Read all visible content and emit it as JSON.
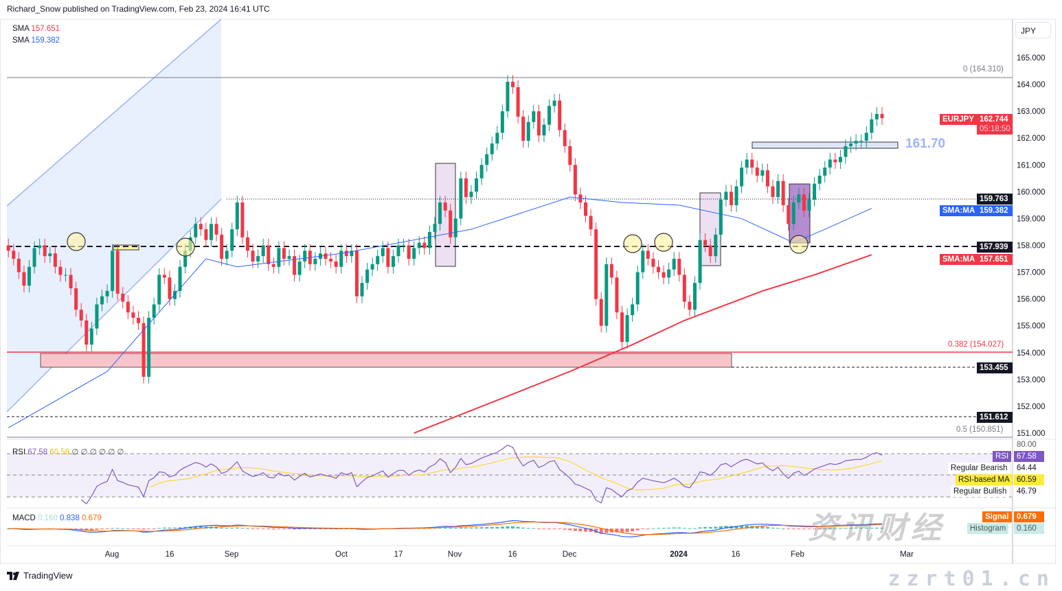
{
  "header": {
    "publisher": "Richard_Snow published on TradingView.com, Feb 23, 2024 16:41 UTC"
  },
  "legend": {
    "sma1_label": "SMA",
    "sma1_value": "157.651",
    "sma2_label": "SMA",
    "sma2_value": "159.382"
  },
  "currency_button": "JPY",
  "footer": {
    "brand": "TradingView"
  },
  "watermark": {
    "text": "zzrt01.cn",
    "glyphs": "资讯财经"
  },
  "colors": {
    "up": "#089981",
    "down": "#f23645",
    "sma50": "#2962ff",
    "sma200": "#f23645",
    "rsi": "#7e57c2",
    "rsi_ma": "#fdd835",
    "macd": "#2962ff",
    "signal": "#ff6d00"
  },
  "chart_data": {
    "type": "candlestick",
    "symbol": "EURJPY",
    "last_price": "162.744",
    "countdown": "05:18:50",
    "ylim": [
      150.6,
      166
    ],
    "y_ticks": [
      "165.000",
      "164.000",
      "163.000",
      "162.000",
      "161.000",
      "160.000",
      "159.000",
      "158.000",
      "157.000",
      "156.000",
      "155.000",
      "154.000",
      "153.000",
      "152.000",
      "151.000"
    ],
    "x_ticks": [
      "Aug",
      "16",
      "Sep",
      "Oct",
      "17",
      "Nov",
      "16",
      "Dec",
      "2024",
      "16",
      "Feb",
      "Mar"
    ],
    "weeks": [
      {
        "week": "2023-07-03",
        "closes": [
          157.8,
          157.5,
          157.0,
          156.5,
          157.2
        ]
      },
      {
        "week": "2023-07-10",
        "closes": [
          157.9,
          158.0,
          157.6,
          157.7,
          157.2
        ]
      },
      {
        "week": "2023-07-17",
        "closes": [
          156.9,
          156.9,
          156.4,
          155.6,
          155.2
        ]
      },
      {
        "week": "2023-07-24",
        "closes": [
          154.3,
          154.9,
          155.8,
          156.1,
          156.3
        ]
      },
      {
        "week": "2023-07-31",
        "closes": [
          157.8,
          156.2,
          155.9,
          155.5,
          155.3
        ]
      },
      {
        "week": "2023-08-07",
        "closes": [
          155.1,
          153.1,
          155.3,
          155.8,
          156.9
        ]
      },
      {
        "week": "2023-08-14",
        "closes": [
          156.8,
          156.0,
          156.3,
          157.2,
          157.8
        ]
      },
      {
        "week": "2023-08-21",
        "closes": [
          158.3,
          158.8,
          158.6,
          158.2,
          158.8
        ]
      },
      {
        "week": "2023-08-28",
        "closes": [
          158.4,
          157.5,
          157.8,
          158.6,
          159.6
        ]
      },
      {
        "week": "2023-09-04",
        "closes": [
          158.3,
          157.8,
          157.4,
          157.6,
          158.0
        ]
      },
      {
        "week": "2023-09-11",
        "closes": [
          157.3,
          157.2,
          157.9,
          157.5,
          157.6
        ]
      },
      {
        "week": "2023-09-18",
        "closes": [
          156.9,
          157.4,
          157.8,
          157.3,
          157.5
        ]
      },
      {
        "week": "2023-09-25",
        "closes": [
          157.7,
          157.5,
          157.4,
          157.2,
          157.8
        ]
      },
      {
        "week": "2023-10-02",
        "closes": [
          157.6,
          157.8,
          156.1,
          156.6,
          157.1
        ]
      },
      {
        "week": "2023-10-09",
        "closes": [
          157.3,
          157.6,
          157.9,
          157.2,
          157.6
        ]
      },
      {
        "week": "2023-10-16",
        "closes": [
          158.0,
          158.0,
          157.5,
          157.9,
          158.1
        ]
      },
      {
        "week": "2023-10-23",
        "closes": [
          157.9,
          158.5,
          158.8,
          159.6,
          159.3
        ]
      },
      {
        "week": "2023-10-30",
        "closes": [
          158.3,
          159.0,
          160.5,
          159.8,
          160.0
        ]
      },
      {
        "week": "2023-11-06",
        "closes": [
          160.5,
          161.0,
          161.4,
          161.8,
          162.2
        ]
      },
      {
        "week": "2023-11-13",
        "closes": [
          163.0,
          164.1,
          163.9,
          162.8,
          161.9
        ]
      },
      {
        "week": "2023-11-20",
        "closes": [
          162.6,
          163.0,
          162.1,
          162.5,
          163.2
        ]
      },
      {
        "week": "2023-11-27",
        "closes": [
          163.4,
          162.3,
          161.7,
          161.0,
          159.9
        ]
      },
      {
        "week": "2023-12-04",
        "closes": [
          159.6,
          159.1,
          158.6,
          156.0,
          155.0
        ]
      },
      {
        "week": "2023-12-11",
        "closes": [
          157.3,
          156.8,
          155.5,
          154.4,
          155.4
        ]
      },
      {
        "week": "2023-12-18",
        "closes": [
          155.8,
          157.0,
          157.8,
          157.5,
          157.2
        ]
      },
      {
        "week": "2023-12-25",
        "closes": [
          157.0,
          156.8,
          157.1,
          157.5,
          156.9
        ]
      },
      {
        "week": "2024-01-01",
        "closes": [
          155.9,
          155.6,
          156.6,
          158.2
        ]
      },
      {
        "week": "2024-01-08",
        "closes": [
          158.0,
          157.6,
          158.4,
          159.7,
          160.0
        ]
      },
      {
        "week": "2024-01-15",
        "closes": [
          159.5,
          160.2,
          160.9,
          161.2,
          160.9
        ]
      },
      {
        "week": "2024-01-22",
        "closes": [
          160.6,
          160.8,
          160.2,
          159.8,
          160.4
        ]
      },
      {
        "week": "2024-01-29",
        "closes": [
          159.5,
          158.8,
          159.6,
          159.9,
          159.3
        ]
      },
      {
        "week": "2024-02-05",
        "closes": [
          159.7,
          160.3,
          160.6,
          160.9,
          161.2
        ]
      },
      {
        "week": "2024-02-12",
        "closes": [
          161.1,
          161.3,
          161.7,
          161.8,
          161.9
        ]
      },
      {
        "week": "2024-02-19",
        "closes": [
          161.9,
          162.2,
          162.7,
          162.9,
          162.744
        ]
      }
    ],
    "sma50": [
      [
        0,
        151.2
      ],
      [
        19,
        153.3
      ],
      [
        38,
        157.5
      ],
      [
        44,
        157.2
      ],
      [
        64,
        157.7
      ],
      [
        89,
        158.6
      ],
      [
        108,
        159.8
      ],
      [
        118,
        159.6
      ],
      [
        129,
        159.5
      ],
      [
        141,
        159.0
      ],
      [
        151,
        158.1
      ],
      [
        157,
        158.6
      ],
      [
        166,
        159.38
      ]
    ],
    "sma200": [
      [
        78,
        151.0
      ],
      [
        108,
        153.3
      ],
      [
        120,
        154.3
      ],
      [
        130,
        155.2
      ],
      [
        145,
        156.3
      ],
      [
        155,
        156.9
      ],
      [
        166,
        157.65
      ]
    ],
    "levels": {
      "fib_0": "0 (164.310)",
      "fib_0382": "0.382 (154.027)",
      "fib_05": "0.5 (150.851)",
      "resistance_note": "161.70",
      "l1": "159.763",
      "l2": "157.939",
      "l3": "153.455",
      "l4": "151.612",
      "sma_tag": "SMA:MA",
      "sma50_value": "159.382",
      "sma200_value": "157.651"
    },
    "rsi": {
      "label": "RSI",
      "value": "67.58",
      "ma_value": "60.59",
      "na": "∅ ∅ ∅ ∅ ∅ ∅",
      "top_tick": "80.00",
      "bearish_label": "Regular Bearish",
      "bearish_value": "64.44",
      "ma_label": "RSI-based MA",
      "bullish_label": "Regular Bullish",
      "bullish_value": "46.79"
    },
    "macd": {
      "label": "MACD",
      "hist": "0.160",
      "macd": "0.838",
      "signal": "0.679",
      "signal_label": "Signal",
      "hist_label": "Histogram"
    }
  }
}
